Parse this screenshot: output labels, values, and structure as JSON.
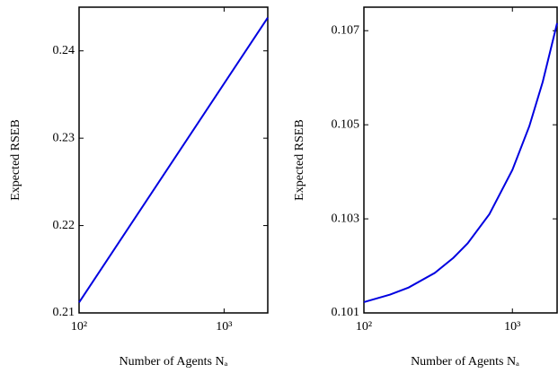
{
  "chart_data": [
    {
      "type": "line",
      "xlabel": "Number of Agents Nₐ",
      "ylabel": "Expected RSEB",
      "xscale": "log",
      "x": [
        100,
        2000
      ],
      "series": [
        {
          "color": "#0000e0",
          "values": [
            0.2112,
            0.2438
          ]
        }
      ],
      "xlim": [
        100,
        2000
      ],
      "xticks": [
        {
          "value": 100,
          "label": "10²"
        },
        {
          "value": 1000,
          "label": "10³"
        }
      ],
      "ylim": [
        0.21,
        0.245
      ],
      "yticks": [
        0.21,
        0.22,
        0.23,
        0.24
      ]
    },
    {
      "type": "line",
      "xlabel": "Number of Agents Nₐ",
      "ylabel": "Expected RSEB",
      "xscale": "log",
      "x": [
        100,
        150,
        200,
        300,
        400,
        500,
        700,
        1000,
        1300,
        1600,
        2000
      ],
      "series": [
        {
          "color": "#0000e0",
          "values": [
            0.10123,
            0.10139,
            0.10154,
            0.10185,
            0.10217,
            0.10248,
            0.1031,
            0.10404,
            0.10497,
            0.10591,
            0.10716
          ]
        }
      ],
      "xlim": [
        100,
        2000
      ],
      "xticks": [
        {
          "value": 100,
          "label": "10²"
        },
        {
          "value": 1000,
          "label": "10³"
        }
      ],
      "ylim": [
        0.101,
        0.1075
      ],
      "yticks": [
        0.101,
        0.103,
        0.105,
        0.107
      ]
    }
  ]
}
